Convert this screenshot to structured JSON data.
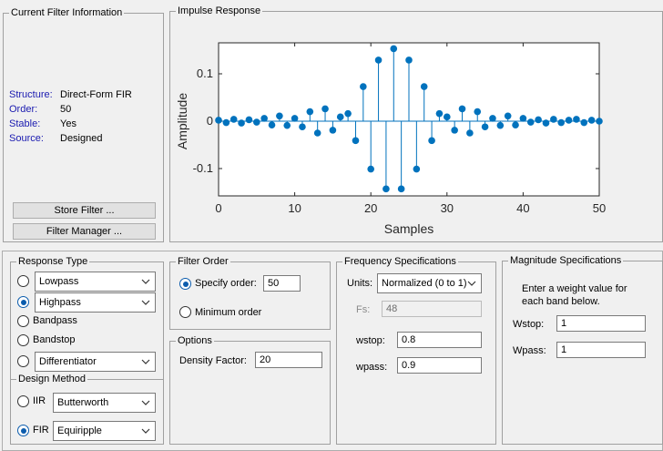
{
  "current_filter": {
    "title": "Current Filter Information",
    "rows": [
      {
        "label": "Structure:",
        "value": "Direct-Form FIR"
      },
      {
        "label": "Order:",
        "value": "50"
      },
      {
        "label": "Stable:",
        "value": "Yes"
      },
      {
        "label": "Source:",
        "value": "Designed"
      }
    ],
    "store_button": "Store Filter ...",
    "manager_button": "Filter Manager ..."
  },
  "impulse": {
    "title": "Impulse Response",
    "ylabel": "Amplitude",
    "xlabel": "Samples",
    "color": "#0072bd"
  },
  "chart_data": {
    "type": "stem",
    "title": "Impulse Response",
    "xlabel": "Samples",
    "ylabel": "Amplitude",
    "xlim": [
      0,
      50
    ],
    "ylim": [
      -0.15,
      0.17
    ],
    "x_ticks": [
      "0",
      "10",
      "20",
      "30",
      "40",
      "50"
    ],
    "y_ticks": [
      "0.1",
      "0",
      "-0.1"
    ],
    "x": [
      0,
      1,
      2,
      3,
      4,
      5,
      6,
      7,
      8,
      9,
      10,
      11,
      12,
      13,
      14,
      15,
      16,
      17,
      18,
      19,
      20,
      21,
      22,
      23,
      24,
      25,
      26,
      27,
      28,
      29,
      30,
      31,
      32,
      33,
      34,
      35,
      36,
      37,
      38,
      39,
      40,
      41,
      42,
      43,
      44,
      45,
      46,
      47,
      48,
      49,
      50
    ],
    "values": [
      0.002,
      -0.003,
      0.004,
      -0.004,
      0.003,
      -0.002,
      0.006,
      -0.008,
      0.011,
      -0.009,
      0.006,
      -0.012,
      0.02,
      -0.025,
      0.026,
      -0.019,
      0.009,
      0.016,
      -0.041,
      0.073,
      -0.101,
      0.129,
      -0.143,
      0.153,
      -0.143,
      0.129,
      -0.101,
      0.073,
      -0.041,
      0.016,
      0.009,
      -0.019,
      0.026,
      -0.025,
      0.02,
      -0.012,
      0.006,
      -0.009,
      0.011,
      -0.008,
      0.006,
      -0.002,
      0.003,
      -0.004,
      0.004,
      -0.003,
      0.002,
      0.004,
      -0.003,
      0.002,
      0.0
    ]
  },
  "response_type": {
    "title": "Response Type",
    "lowpass": "Lowpass",
    "highpass": "Highpass",
    "bandpass": "Bandpass",
    "bandstop": "Bandstop",
    "differentiator": "Differentiator"
  },
  "design_method": {
    "title": "Design Method",
    "iir": "IIR",
    "iir_value": "Butterworth",
    "fir": "FIR",
    "fir_value": "Equiripple"
  },
  "filter_order": {
    "title": "Filter Order",
    "specify": "Specify order:",
    "specify_value": "50",
    "minimum": "Minimum order"
  },
  "options": {
    "title": "Options",
    "density_label": "Density Factor:",
    "density_value": "20"
  },
  "freq_specs": {
    "title": "Frequency Specifications",
    "units_label": "Units:",
    "units_value": "Normalized (0 to 1)",
    "fs_label": "Fs:",
    "fs_value": "48",
    "wstop_label": "wstop:",
    "wstop_value": "0.8",
    "wpass_label": "wpass:",
    "wpass_value": "0.9"
  },
  "mag_specs": {
    "title": "Magnitude Specifications",
    "hint_line1": "Enter a weight value for",
    "hint_line2": "each band below.",
    "wstop_label": "Wstop:",
    "wstop_value": "1",
    "wpass_label": "Wpass:",
    "wpass_value": "1"
  }
}
